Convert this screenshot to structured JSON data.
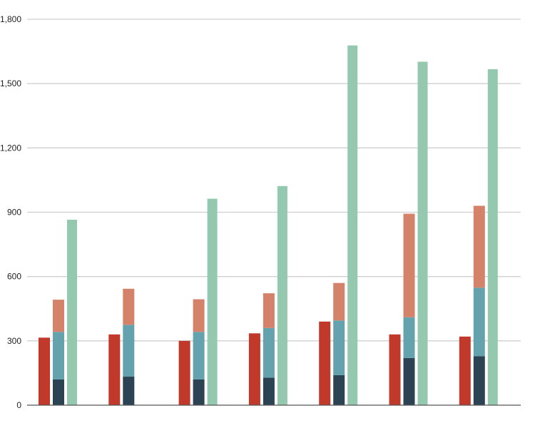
{
  "chart_data": {
    "type": "bar",
    "categories": [
      "",
      "",
      "",
      "",
      "",
      "",
      ""
    ],
    "yticks": [
      "0",
      "300",
      "600",
      "900",
      "1,200",
      "1,500",
      "1,800"
    ],
    "ylim": [
      0,
      1800
    ],
    "grid": true,
    "colors": {
      "single_bar": "#c0392b",
      "stack_bottom": "#2c4354",
      "stack_middle": "#64a3ad",
      "stack_top": "#d4826a",
      "tall_bar": "#94c9b0",
      "grid": "#cfcfcf",
      "axis": "#555555"
    },
    "series": [
      {
        "values": [
          315,
          330,
          300,
          335,
          390,
          330,
          320
        ]
      },
      {
        "values": [
          120,
          133,
          120,
          128,
          140,
          220,
          228
        ],
        "stack": "b"
      },
      {
        "values": [
          222,
          242,
          222,
          232,
          255,
          190,
          320
        ],
        "stack": "b"
      },
      {
        "values": [
          150,
          168,
          152,
          162,
          175,
          483,
          382
        ],
        "stack": "b"
      },
      {
        "values": [
          865,
          0,
          963,
          1022,
          1678,
          1602,
          1567
        ]
      }
    ]
  }
}
